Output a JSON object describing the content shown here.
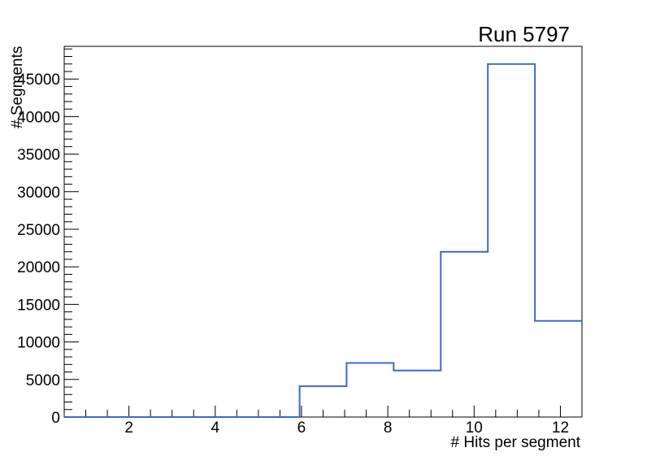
{
  "window": {
    "background": "#ffffff"
  },
  "chart_data": {
    "type": "histogram-step",
    "title": "Run 5797",
    "xlabel": "# Hits per segment",
    "ylabel": "# Segments",
    "x_range": [
      0.5,
      12.5
    ],
    "y_range": [
      0,
      49350
    ],
    "n_bins": 11,
    "bin_edges": [
      0.5,
      1.591,
      2.682,
      3.773,
      4.864,
      5.955,
      7.045,
      8.136,
      9.227,
      10.318,
      11.409,
      12.5
    ],
    "bin_values": [
      0,
      0,
      0,
      0,
      0,
      4100,
      7200,
      6200,
      22000,
      47000,
      12800
    ],
    "x_major_ticks": [
      2,
      4,
      6,
      8,
      10,
      12
    ],
    "x_minor_step": 0.5,
    "y_major_ticks": [
      0,
      5000,
      10000,
      15000,
      20000,
      25000,
      30000,
      35000,
      40000,
      45000
    ],
    "y_minor_step": 1000,
    "line_color": "#3a6cc4",
    "axis_color": "#000000",
    "text_color": "#000000",
    "grid": false,
    "legend_position": "none"
  }
}
